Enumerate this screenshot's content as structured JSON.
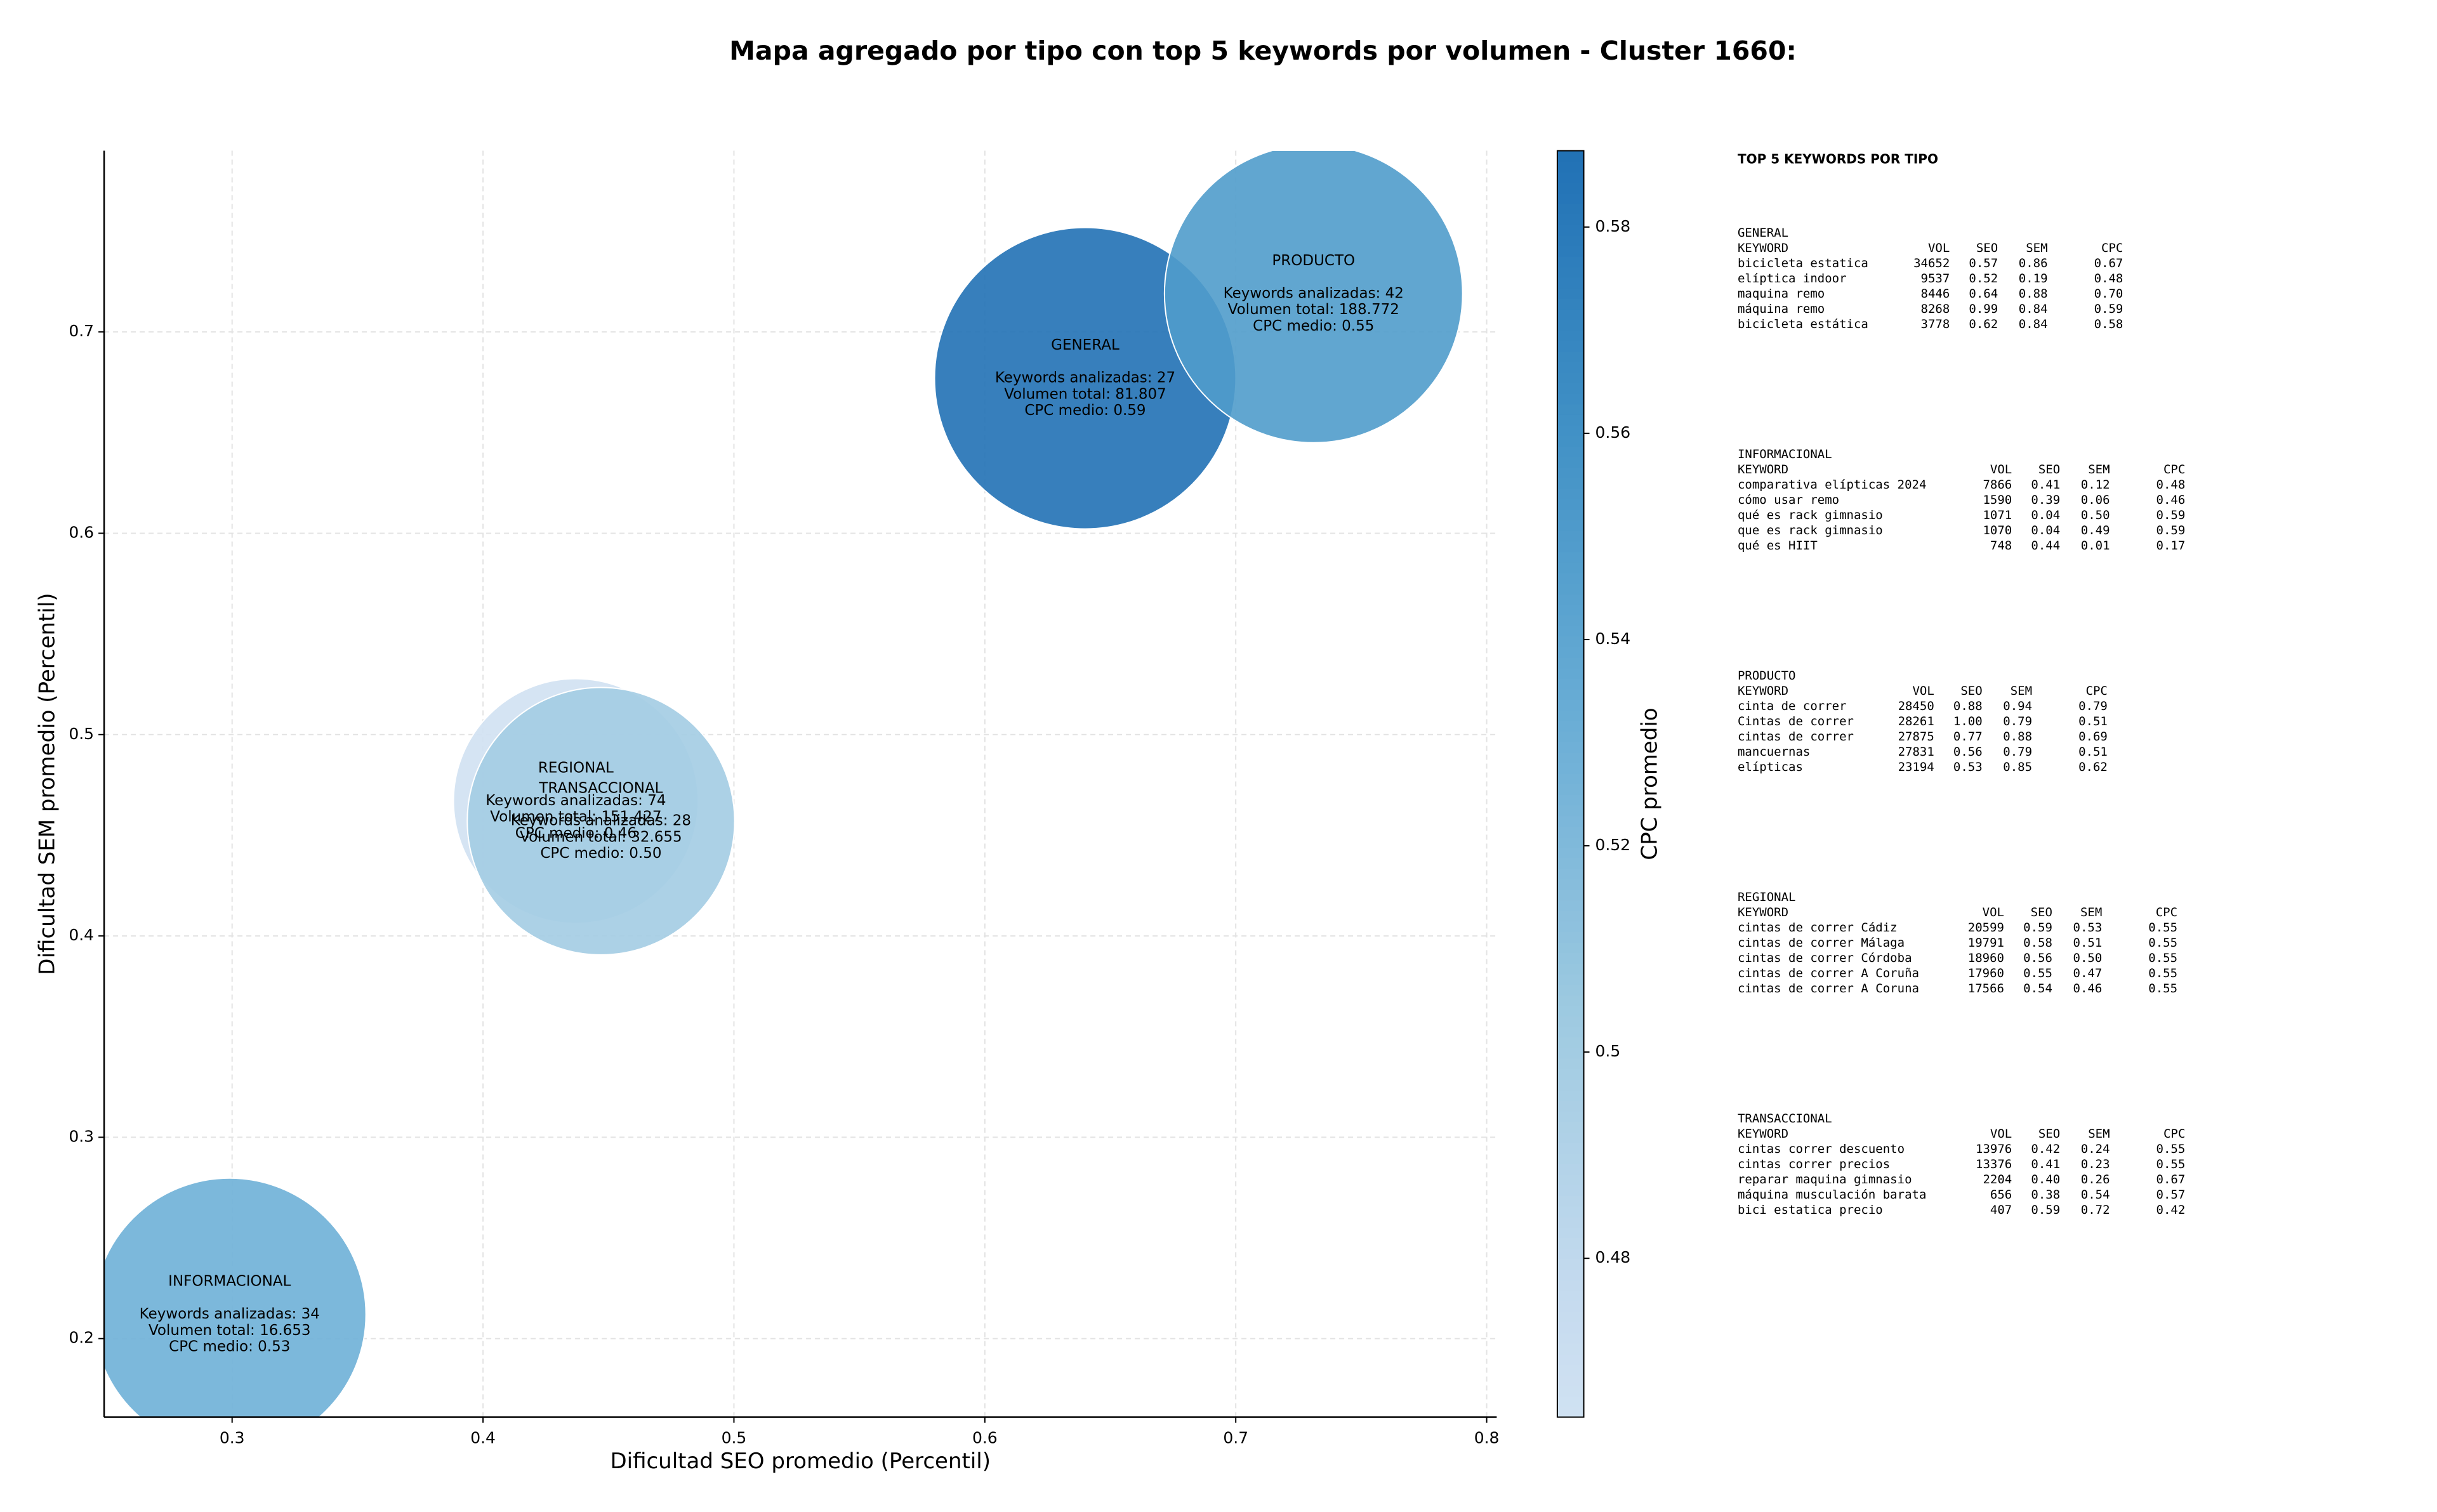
{
  "chart_data": {
    "type": "bubble",
    "title": "Mapa agregado por tipo con top 5 keywords por volumen - Cluster 1660:",
    "x_label": "Dificultad SEO promedio (Percentil)",
    "y_label": "Dificultad SEM promedio (Percentil)",
    "colorbar_label": "CPC promedio",
    "colormap": "Blues",
    "categories": [
      "GENERAL",
      "INFORMACIONAL",
      "PRODUCTO",
      "REGIONAL",
      "TRANSACCIONAL"
    ],
    "x": [
      0.64,
      0.299,
      0.731,
      0.437,
      0.447
    ],
    "values": [
      0.677,
      0.212,
      0.719,
      0.467,
      0.457
    ],
    "sizes": [
      9400,
      7700,
      9200,
      6200,
      7400
    ],
    "cpc": [
      0.59,
      0.53,
      0.55,
      0.46,
      0.5
    ],
    "annotations": [
      [
        "Keywords analizadas: 27",
        "Volumen total: 81.807",
        "CPC medio: 0.59"
      ],
      [
        "Keywords analizadas: 34",
        "Volumen total: 16.653",
        "CPC medio: 0.53"
      ],
      [
        "Keywords analizadas: 42",
        "Volumen total: 188.772",
        "CPC medio: 0.55"
      ],
      [
        "Keywords analizadas: 74",
        "Volumen total: 151.427",
        "CPC medio: 0.46"
      ],
      [
        "Keywords analizadas: 28",
        "Volumen total: 32.655",
        "CPC medio: 0.50"
      ]
    ],
    "xlim": [
      0.249,
      0.804
    ],
    "ylim": [
      0.161,
      0.79
    ],
    "xticks": [
      0.3,
      0.4,
      0.5,
      0.6,
      0.7,
      0.8
    ],
    "yticks": [
      0.2,
      0.3,
      0.4,
      0.5,
      0.6,
      0.7
    ],
    "clim": [
      0.4646,
      0.5874
    ],
    "cticks": [
      0.48,
      0.5,
      0.52,
      0.54,
      0.56,
      0.58
    ],
    "grid": true
  },
  "panel": {
    "title": "TOP 5 KEYWORDS POR TIPO",
    "header": [
      "KEYWORD",
      "VOL",
      "SEO",
      "SEM",
      "CPC"
    ],
    "sections": [
      {
        "name": "GENERAL",
        "rows": [
          [
            "bicicleta estatica",
            "34652",
            "0.57",
            "0.86",
            "0.67"
          ],
          [
            "elíptica indoor",
            "9537",
            "0.52",
            "0.19",
            "0.48"
          ],
          [
            "maquina remo",
            "8446",
            "0.64",
            "0.88",
            "0.70"
          ],
          [
            "máquina remo",
            "8268",
            "0.99",
            "0.84",
            "0.59"
          ],
          [
            "bicicleta estática",
            "3778",
            "0.62",
            "0.84",
            "0.58"
          ]
        ]
      },
      {
        "name": "INFORMACIONAL",
        "rows": [
          [
            "comparativa elípticas 2024",
            "7866",
            "0.41",
            "0.12",
            "0.48"
          ],
          [
            "cómo usar remo",
            "1590",
            "0.39",
            "0.06",
            "0.46"
          ],
          [
            "qué es rack gimnasio",
            "1071",
            "0.04",
            "0.50",
            "0.59"
          ],
          [
            "que es rack gimnasio",
            "1070",
            "0.04",
            "0.49",
            "0.59"
          ],
          [
            "qué es HIIT",
            "748",
            "0.44",
            "0.01",
            "0.17"
          ]
        ]
      },
      {
        "name": "PRODUCTO",
        "rows": [
          [
            "cinta de correr",
            "28450",
            "0.88",
            "0.94",
            "0.79"
          ],
          [
            "Cintas de correr",
            "28261",
            "1.00",
            "0.79",
            "0.51"
          ],
          [
            "cintas de correr",
            "27875",
            "0.77",
            "0.88",
            "0.69"
          ],
          [
            "mancuernas",
            "27831",
            "0.56",
            "0.79",
            "0.51"
          ],
          [
            "elípticas",
            "23194",
            "0.53",
            "0.85",
            "0.62"
          ]
        ]
      },
      {
        "name": "REGIONAL",
        "rows": [
          [
            "cintas de correr Cádiz",
            "20599",
            "0.59",
            "0.53",
            "0.55"
          ],
          [
            "cintas de correr Málaga",
            "19791",
            "0.58",
            "0.51",
            "0.55"
          ],
          [
            "cintas de correr Córdoba",
            "18960",
            "0.56",
            "0.50",
            "0.55"
          ],
          [
            "cintas de correr A Coruña",
            "17960",
            "0.55",
            "0.47",
            "0.55"
          ],
          [
            "cintas de correr A Coruna",
            "17566",
            "0.54",
            "0.46",
            "0.55"
          ]
        ]
      },
      {
        "name": "TRANSACCIONAL",
        "rows": [
          [
            "cintas correr descuento",
            "13976",
            "0.42",
            "0.24",
            "0.55"
          ],
          [
            "cintas correr precios",
            "13376",
            "0.41",
            "0.23",
            "0.55"
          ],
          [
            "reparar maquina gimnasio",
            "2204",
            "0.40",
            "0.26",
            "0.67"
          ],
          [
            "máquina musculación barata",
            "656",
            "0.38",
            "0.54",
            "0.57"
          ],
          [
            "bici estatica precio",
            "407",
            "0.59",
            "0.72",
            "0.42"
          ]
        ]
      }
    ]
  }
}
